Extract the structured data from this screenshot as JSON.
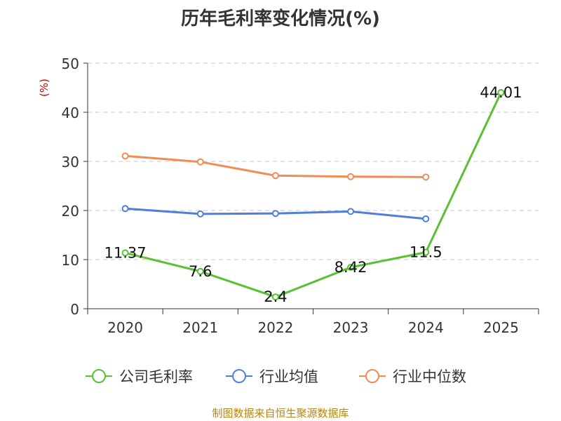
{
  "colors": {
    "company": "#5ac134",
    "industry_avg": "#4f7fdb",
    "industry_median": "#f28c55",
    "grid": "#c8c8c8",
    "axis": "#333333",
    "unit": "#cc0000",
    "source": "#b8860b"
  },
  "chart_data": {
    "type": "line",
    "title": "历年毛利率变化情况(%)",
    "ylabel": "(%)",
    "xlabel": "",
    "categories": [
      "2020",
      "2021",
      "2022",
      "2023",
      "2024",
      "2025"
    ],
    "ylim": [
      0,
      50
    ],
    "yticks": [
      0,
      10,
      20,
      30,
      40,
      50
    ],
    "grid": true,
    "legend_position": "bottom",
    "series": [
      {
        "name": "公司毛利率",
        "values": [
          11.37,
          7.6,
          2.4,
          8.42,
          11.5,
          44.01
        ],
        "labels": [
          "11.37",
          "7.6",
          "2.4",
          "8.42",
          "11.5",
          "44.01"
        ]
      },
      {
        "name": "行业均值",
        "values": [
          20.4,
          19.3,
          19.4,
          19.8,
          18.3,
          null
        ]
      },
      {
        "name": "行业中位数",
        "values": [
          31.1,
          29.9,
          27.1,
          26.9,
          26.8,
          null
        ]
      }
    ]
  },
  "source_text": "制图数据来自恒生聚源数据库"
}
